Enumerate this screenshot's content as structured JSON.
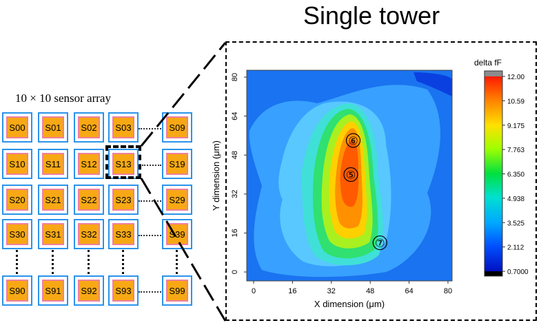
{
  "title": "Single tower",
  "array_label": "10 × 10 sensor array",
  "sensors": {
    "row0": [
      "S00",
      "S01",
      "S02",
      "S03",
      "S09"
    ],
    "row1": [
      "S10",
      "S11",
      "S12",
      "S13",
      "S19"
    ],
    "row2": [
      "S20",
      "S21",
      "S22",
      "S23",
      "S29"
    ],
    "row3": [
      "S30",
      "S31",
      "S32",
      "S33",
      "S39"
    ],
    "row9": [
      "S90",
      "S91",
      "S92",
      "S93",
      "S99"
    ]
  },
  "chart_data": {
    "type": "heatmap",
    "title": "",
    "xlabel": "X dimension (μm)",
    "ylabel": "Y dimension (μm)",
    "xlim": [
      0,
      80
    ],
    "ylim": [
      0,
      80
    ],
    "x_ticks": [
      "0",
      "16",
      "32",
      "48",
      "64",
      "80"
    ],
    "y_ticks": [
      "0",
      "16",
      "32",
      "48",
      "64",
      "80"
    ],
    "colorbar": {
      "label": "delta fF",
      "ticks": [
        "12.00",
        "10.59",
        "9.175",
        "7.763",
        "6.350",
        "4.938",
        "3.525",
        "2.112",
        "0.7000"
      ],
      "min": 0.7,
      "max": 12.0
    },
    "annotations": [
      {
        "label": "⑥",
        "x": 41,
        "y": 54
      },
      {
        "label": "⑤",
        "x": 40,
        "y": 40
      },
      {
        "label": "⑦",
        "x": 52,
        "y": 12
      }
    ]
  }
}
